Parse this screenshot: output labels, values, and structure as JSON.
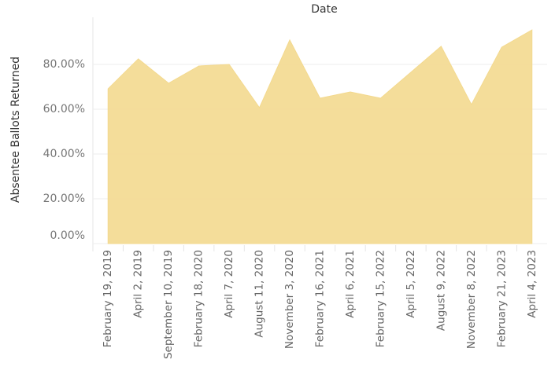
{
  "chart_data": {
    "type": "area",
    "title": "Date",
    "y_label": "Absentee Ballots Returned",
    "categories": [
      "February 19, 2019",
      "April 2, 2019",
      "September 10, 2019",
      "February 18, 2020",
      "April 7, 2020",
      "August 11, 2020",
      "November 3, 2020",
      "February 16, 2021",
      "April 6, 2021",
      "February 15, 2022",
      "April 5, 2022",
      "August 9, 2022",
      "November 8, 2022",
      "February 21, 2023",
      "April 4, 2023"
    ],
    "values": [
      69.1,
      82.5,
      71.6,
      79.3,
      80.0,
      60.7,
      90.9,
      64.9,
      67.7,
      64.9,
      76.5,
      88.1,
      62.1,
      87.7,
      95.4
    ],
    "color": "#f3d98f",
    "ylim": [
      0,
      100
    ],
    "yticks": [
      {
        "value": 0,
        "label": "0.00%"
      },
      {
        "value": 20,
        "label": "20.00%"
      },
      {
        "value": 40,
        "label": "40.00%"
      },
      {
        "value": 60,
        "label": "60.00%"
      },
      {
        "value": 80,
        "label": "80.00%"
      }
    ],
    "grid": true
  }
}
